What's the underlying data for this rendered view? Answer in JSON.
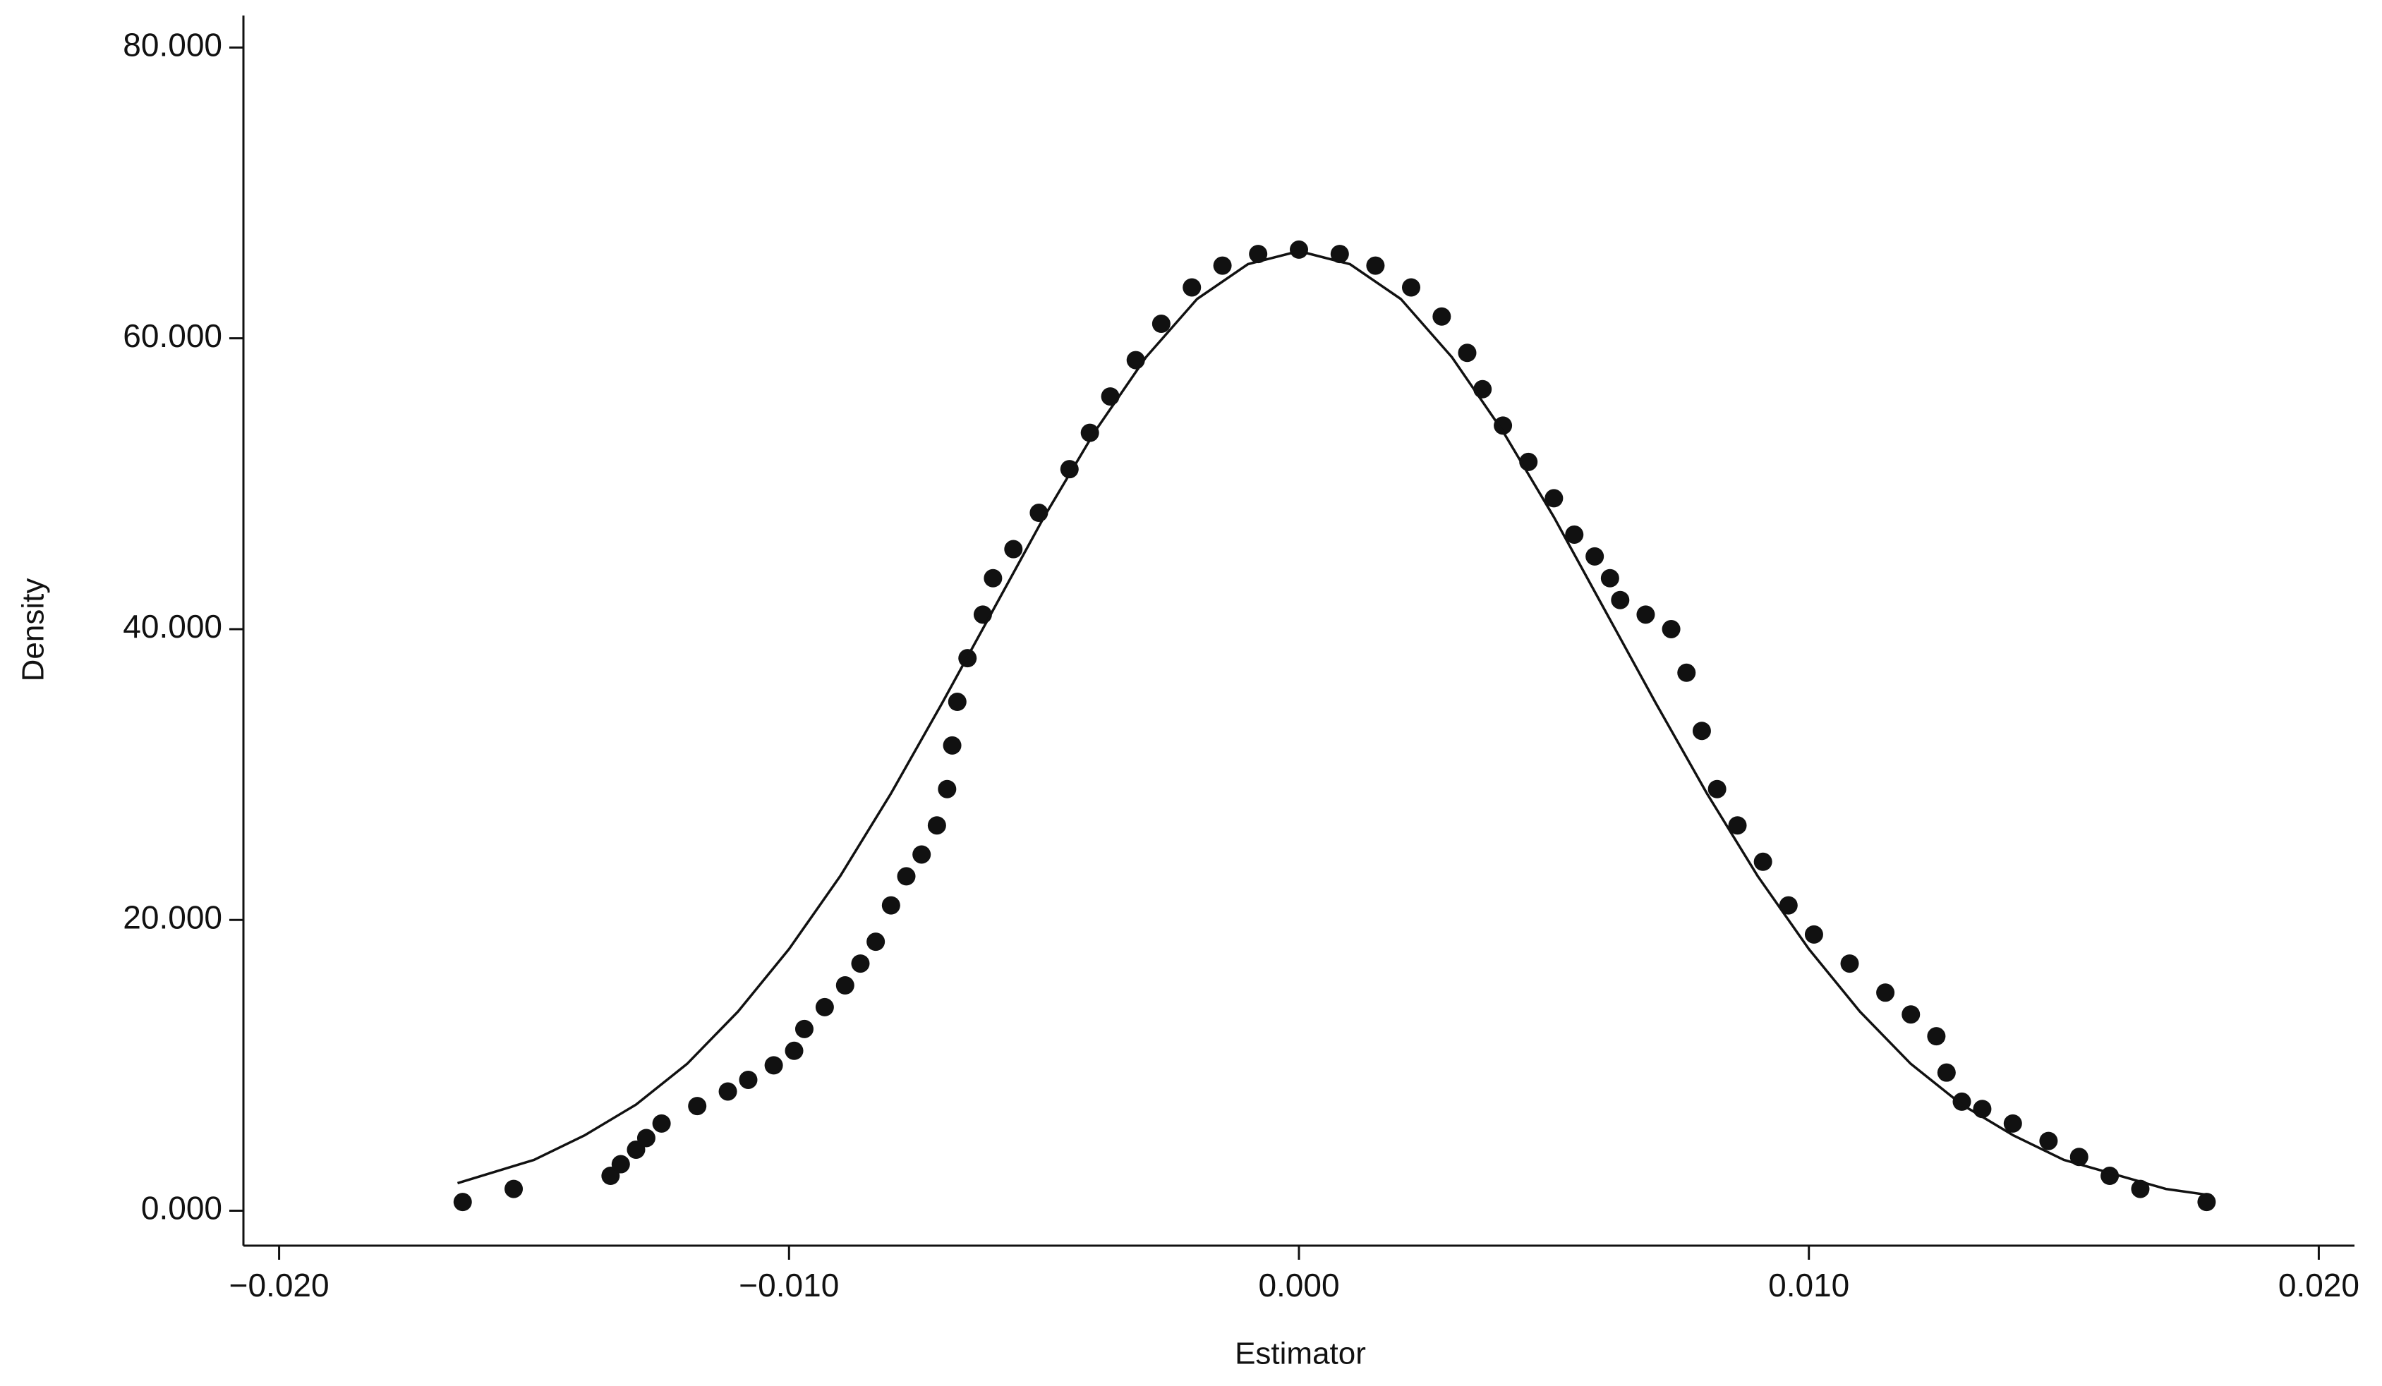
{
  "chart_data": {
    "type": "scatter",
    "x_label": "Estimator",
    "y_label": "Density",
    "xlim": [
      -0.0207,
      0.0207
    ],
    "ylim": [
      -2.4,
      82.2
    ],
    "xticks": [
      {
        "value": -0.02,
        "label": "−0.020"
      },
      {
        "value": -0.01,
        "label": "−0.010"
      },
      {
        "value": 0,
        "label": "0.000"
      },
      {
        "value": 0.01,
        "label": "0.010"
      },
      {
        "value": 0.02,
        "label": "0.020"
      }
    ],
    "yticks": [
      {
        "value": 0,
        "label": "0.000"
      },
      {
        "value": 20,
        "label": "20.000"
      },
      {
        "value": 40,
        "label": "40.000"
      },
      {
        "value": 60,
        "label": "60.000"
      },
      {
        "value": 80,
        "label": "80.000"
      }
    ],
    "grid": false,
    "series": [
      {
        "mode": "markers",
        "color": "#111111",
        "x": [
          -0.0164,
          -0.0154,
          -0.0135,
          -0.0133,
          -0.013,
          -0.0128,
          -0.0125,
          -0.0118,
          -0.0112,
          -0.0108,
          -0.0103,
          -0.0099,
          -0.0097,
          -0.0093,
          -0.0089,
          -0.0086,
          -0.0083,
          -0.008,
          -0.0077,
          -0.0074,
          -0.0071,
          -0.0069,
          -0.0068,
          -0.0067,
          -0.0065,
          -0.0062,
          -0.006,
          -0.0056,
          -0.0051,
          -0.0045,
          -0.0041,
          -0.0037,
          -0.0032,
          -0.0027,
          -0.0021,
          -0.0015,
          -0.0008,
          0,
          0.0008,
          0.0015,
          0.0022,
          0.0028,
          0.0033,
          0.0036,
          0.004,
          0.0045,
          0.005,
          0.0054,
          0.0058,
          0.0061,
          0.0063,
          0.0068,
          0.0073,
          0.0076,
          0.0079,
          0.0082,
          0.0086,
          0.0091,
          0.0096,
          0.0101,
          0.0108,
          0.0115,
          0.012,
          0.0125,
          0.0127,
          0.013,
          0.0134,
          0.014,
          0.0147,
          0.0153,
          0.0159,
          0.0165,
          0.0178
        ],
        "values": [
          0.6,
          1.5,
          2.4,
          3.2,
          4.2,
          5,
          6,
          7.2,
          8.2,
          9,
          10,
          11,
          12.5,
          14,
          15.5,
          17,
          18.5,
          21,
          23,
          24.5,
          26.5,
          29,
          32,
          35,
          38,
          41,
          43.5,
          45.5,
          48,
          51,
          53.5,
          56,
          58.5,
          61,
          63.5,
          65,
          65.8,
          66.1,
          65.8,
          65,
          63.5,
          61.5,
          59,
          56.5,
          54,
          51.5,
          49,
          46.5,
          45,
          43.5,
          42,
          41,
          40,
          37,
          33,
          29,
          26.5,
          24,
          21,
          19,
          17,
          15,
          13.5,
          12,
          9.5,
          7.5,
          7,
          6,
          4.8,
          3.7,
          2.4,
          1.5,
          0.6
        ]
      },
      {
        "mode": "line",
        "color": "#111111",
        "x": [
          -0.0165,
          -0.015,
          -0.014,
          -0.013,
          -0.012,
          -0.011,
          -0.01,
          -0.009,
          -0.008,
          -0.007,
          -0.006,
          -0.005,
          -0.004,
          -0.003,
          -0.002,
          -0.001,
          0,
          0.001,
          0.002,
          0.003,
          0.004,
          0.005,
          0.006,
          0.007,
          0.008,
          0.009,
          0.01,
          0.011,
          0.012,
          0.013,
          0.014,
          0.015,
          0.017,
          0.0178
        ],
        "values": [
          1.9,
          3.5,
          5.2,
          7.3,
          10.1,
          13.7,
          18,
          23,
          28.7,
          34.9,
          41.3,
          47.7,
          53.6,
          58.7,
          62.7,
          65.1,
          66,
          65.1,
          62.7,
          58.7,
          53.6,
          47.7,
          41.3,
          34.9,
          28.7,
          23,
          18,
          13.7,
          10.1,
          7.3,
          5.2,
          3.5,
          1.5,
          1.1
        ]
      }
    ]
  }
}
